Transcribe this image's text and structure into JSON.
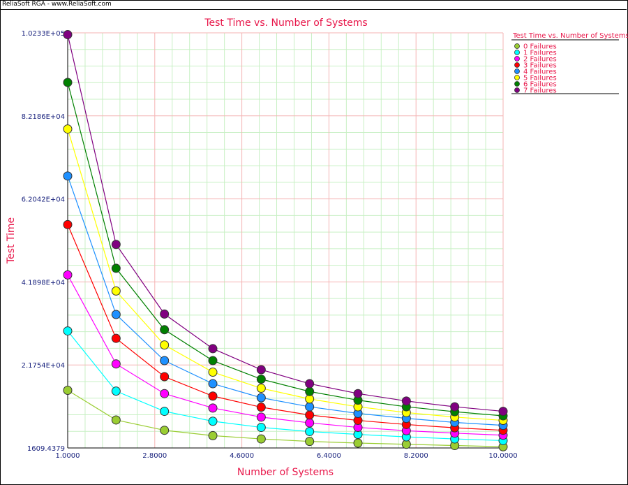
{
  "app": {
    "header_text": "ReliaSoft RGA - www.ReliaSoft.com"
  },
  "colors": {
    "title": "#e8174a",
    "axis_text": "#1a237e",
    "grid_major": "#f4b3b3",
    "grid_minor": "#c8f0c4"
  },
  "chart_data": {
    "type": "line",
    "title": "Test Time vs. Number of Systems",
    "xlabel": "Number of Systems",
    "ylabel": "Test Time",
    "xlim": [
      1,
      10
    ],
    "ylim": [
      1609.4379,
      102330
    ],
    "x_ticks": [
      1,
      2.8,
      4.6,
      6.4,
      8.2,
      10
    ],
    "x_tick_labels": [
      "1.0000",
      "2.8000",
      "4.6000",
      "6.4000",
      "8.2000",
      "10.0000"
    ],
    "y_ticks": [
      1609.4379,
      21754,
      41898,
      62042,
      82186,
      102330
    ],
    "y_tick_labels": [
      "1609.4379",
      "2.1754E+04",
      "4.1898E+04",
      "6.2042E+04",
      "8.2186E+04",
      "1.0233E+05"
    ],
    "grid": true,
    "legend_placement": "right",
    "legend_title": "Test Time vs. Number of Systems",
    "x": [
      1,
      2,
      3,
      4,
      5,
      6,
      7,
      8,
      9,
      10
    ],
    "series": [
      {
        "name": "0 Failures",
        "color": "#9acd32",
        "values": [
          15600,
          8400,
          5900,
          4600,
          3800,
          3200,
          2800,
          2500,
          2200,
          1900
        ]
      },
      {
        "name": "1 Failures",
        "color": "#00ffff",
        "values": [
          30000,
          15400,
          10500,
          8100,
          6600,
          5600,
          4900,
          4300,
          3800,
          3400
        ]
      },
      {
        "name": "2 Failures",
        "color": "#ff00ff",
        "values": [
          43600,
          22000,
          14800,
          11300,
          9100,
          7700,
          6600,
          5800,
          5200,
          4700
        ]
      },
      {
        "name": "3 Failures",
        "color": "#ff0000",
        "values": [
          55800,
          28200,
          18900,
          14200,
          11500,
          9600,
          8300,
          7300,
          6500,
          5900
        ]
      },
      {
        "name": "4 Failures",
        "color": "#1e90ff",
        "values": [
          67600,
          34000,
          22800,
          17200,
          13800,
          11600,
          10000,
          8800,
          7800,
          7100
        ]
      },
      {
        "name": "5 Failures",
        "color": "#ffff00",
        "values": [
          79000,
          39700,
          26600,
          20000,
          16100,
          13500,
          11600,
          10200,
          9100,
          8300
        ]
      },
      {
        "name": "6 Failures",
        "color": "#008000",
        "values": [
          90300,
          45200,
          30300,
          22800,
          18300,
          15300,
          13200,
          11600,
          10400,
          9400
        ]
      },
      {
        "name": "7 Failures",
        "color": "#800080",
        "values": [
          101900,
          51000,
          34100,
          25700,
          20600,
          17200,
          14800,
          13000,
          11600,
          10500
        ]
      }
    ]
  }
}
